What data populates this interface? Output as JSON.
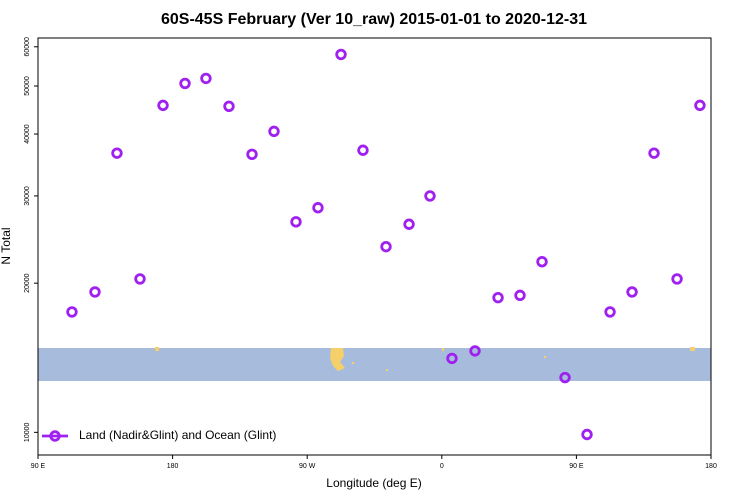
{
  "chart_data": {
    "type": "scatter",
    "title": "60S-45S February (Ver 10_raw)   2015-01-01 to 2020-12-31",
    "x_label": "Longitude (deg E)",
    "y_label": "N Total",
    "xlim": [
      90,
      540
    ],
    "xticks": [
      {
        "value": 90,
        "label": "90 E"
      },
      180,
      {
        "value": 270,
        "label": "90 W"
      },
      {
        "value": 360,
        "label": "0"
      },
      {
        "value": 450,
        "label": "90 E"
      },
      {
        "value": 540,
        "label": "180"
      }
    ],
    "ylim": [
      9000,
      62500
    ],
    "yticks": [
      10000,
      20000,
      30000,
      40000,
      50000,
      60000
    ],
    "ylog": true,
    "legend": "bottom-left",
    "series": [
      {
        "name": "Land (Nadir&Glint) and Ocean (Glint)",
        "color": "#a020f0",
        "x": [
          112.7,
          128.1,
          142.8,
          158.2,
          173.6,
          188.3,
          202.3,
          217.7,
          233.1,
          247.8,
          262.5,
          277.2,
          292.6,
          307.3,
          322.7,
          338.1,
          352.1,
          366.8,
          382.2,
          397.6,
          412.3,
          427.0,
          442.4,
          457.1,
          472.5,
          487.2,
          501.9,
          517.3,
          532.6
        ],
        "values": [
          17500,
          19200,
          36600,
          20400,
          45700,
          50600,
          51800,
          45500,
          36400,
          40500,
          26600,
          28400,
          57900,
          37100,
          23700,
          26300,
          30000,
          14100,
          14600,
          18700,
          18900,
          22100,
          12900,
          9900,
          17500,
          19200,
          36600,
          20400,
          45700
        ]
      }
    ]
  }
}
